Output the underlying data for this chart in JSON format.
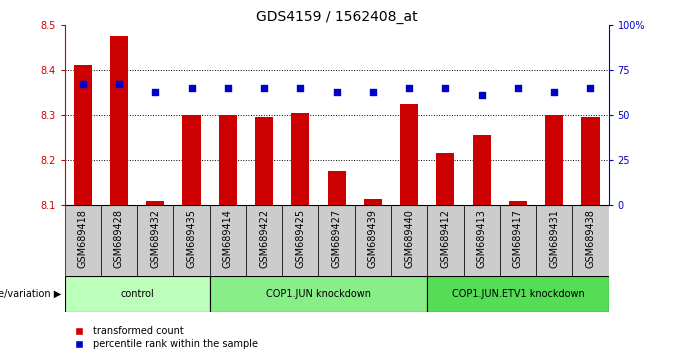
{
  "title": "GDS4159 / 1562408_at",
  "samples": [
    "GSM689418",
    "GSM689428",
    "GSM689432",
    "GSM689435",
    "GSM689414",
    "GSM689422",
    "GSM689425",
    "GSM689427",
    "GSM689439",
    "GSM689440",
    "GSM689412",
    "GSM689413",
    "GSM689417",
    "GSM689431",
    "GSM689438"
  ],
  "red_values": [
    8.41,
    8.475,
    8.11,
    8.3,
    8.3,
    8.295,
    8.305,
    8.175,
    8.115,
    8.325,
    8.215,
    8.255,
    8.11,
    8.3,
    8.295
  ],
  "blue_values": [
    67,
    67,
    63,
    65,
    65,
    65,
    65,
    63,
    63,
    65,
    65,
    61,
    65,
    63,
    65
  ],
  "ylim_left": [
    8.1,
    8.5
  ],
  "ylim_right": [
    0,
    100
  ],
  "yticks_left": [
    8.1,
    8.2,
    8.3,
    8.4,
    8.5
  ],
  "yticks_right": [
    0,
    25,
    50,
    75,
    100
  ],
  "ytick_labels_right": [
    "0",
    "25",
    "50",
    "75",
    "100%"
  ],
  "groups": [
    {
      "label": "control",
      "start": 0,
      "end": 4,
      "color": "#bbffbb"
    },
    {
      "label": "COP1.JUN knockdown",
      "start": 4,
      "end": 10,
      "color": "#88ee88"
    },
    {
      "label": "COP1.JUN.ETV1 knockdown",
      "start": 10,
      "end": 15,
      "color": "#55dd55"
    }
  ],
  "bar_color": "#cc0000",
  "dot_color": "#0000cc",
  "bar_width": 0.5,
  "legend_red_label": "transformed count",
  "legend_blue_label": "percentile rank within the sample",
  "genotype_label": "genotype/variation",
  "background_color": "#ffffff",
  "sample_bg_color": "#cccccc",
  "title_fontsize": 10,
  "tick_fontsize": 7,
  "label_fontsize": 8
}
